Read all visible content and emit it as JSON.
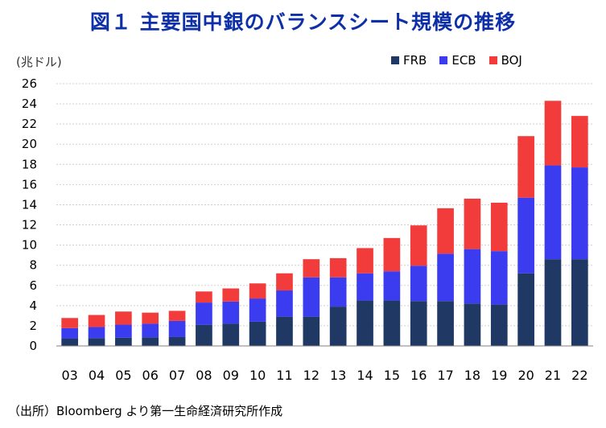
{
  "title": "図１ 主要国中銀のバランスシート規模の推移",
  "unit_label": "(兆ドル)",
  "source": "（出所）Bloomberg より第一生命経済研究所作成",
  "colors": {
    "FRB": "#1f3864",
    "ECB": "#3b3bf0",
    "BOJ": "#f23c3c",
    "title": "#0d2fa8",
    "grid": "#d0d0d0"
  },
  "chart_data": {
    "type": "bar",
    "stacked": true,
    "title": "図１ 主要国中銀のバランスシート規模の推移",
    "ylabel": "(兆ドル)",
    "ylim": [
      0,
      26
    ],
    "yticks": [
      0,
      2,
      4,
      6,
      8,
      10,
      12,
      14,
      16,
      18,
      20,
      22,
      24,
      26
    ],
    "grid": true,
    "legend_position": "top-right",
    "x": [
      "03",
      "04",
      "05",
      "06",
      "07",
      "08",
      "09",
      "10",
      "11",
      "12",
      "13",
      "14",
      "15",
      "16",
      "17",
      "18",
      "19",
      "20",
      "21",
      "22"
    ],
    "series": [
      {
        "name": "FRB",
        "values": [
          0.72,
          0.77,
          0.81,
          0.85,
          0.88,
          2.1,
          2.2,
          2.4,
          2.9,
          2.9,
          3.9,
          4.5,
          4.5,
          4.45,
          4.45,
          4.2,
          4.1,
          7.2,
          8.6,
          8.6
        ]
      },
      {
        "name": "ECB",
        "values": [
          1.05,
          1.1,
          1.3,
          1.35,
          1.6,
          2.2,
          2.2,
          2.3,
          2.6,
          3.9,
          2.9,
          2.7,
          2.9,
          3.5,
          4.7,
          5.4,
          5.3,
          7.5,
          9.3,
          9.1
        ]
      },
      {
        "name": "BOJ",
        "values": [
          1.0,
          1.2,
          1.3,
          1.1,
          1.0,
          1.1,
          1.3,
          1.5,
          1.7,
          1.8,
          1.9,
          2.5,
          3.3,
          4.0,
          4.5,
          5.0,
          4.8,
          6.1,
          6.4,
          5.1
        ]
      }
    ],
    "legend": [
      "FRB",
      "ECB",
      "BOJ"
    ]
  }
}
